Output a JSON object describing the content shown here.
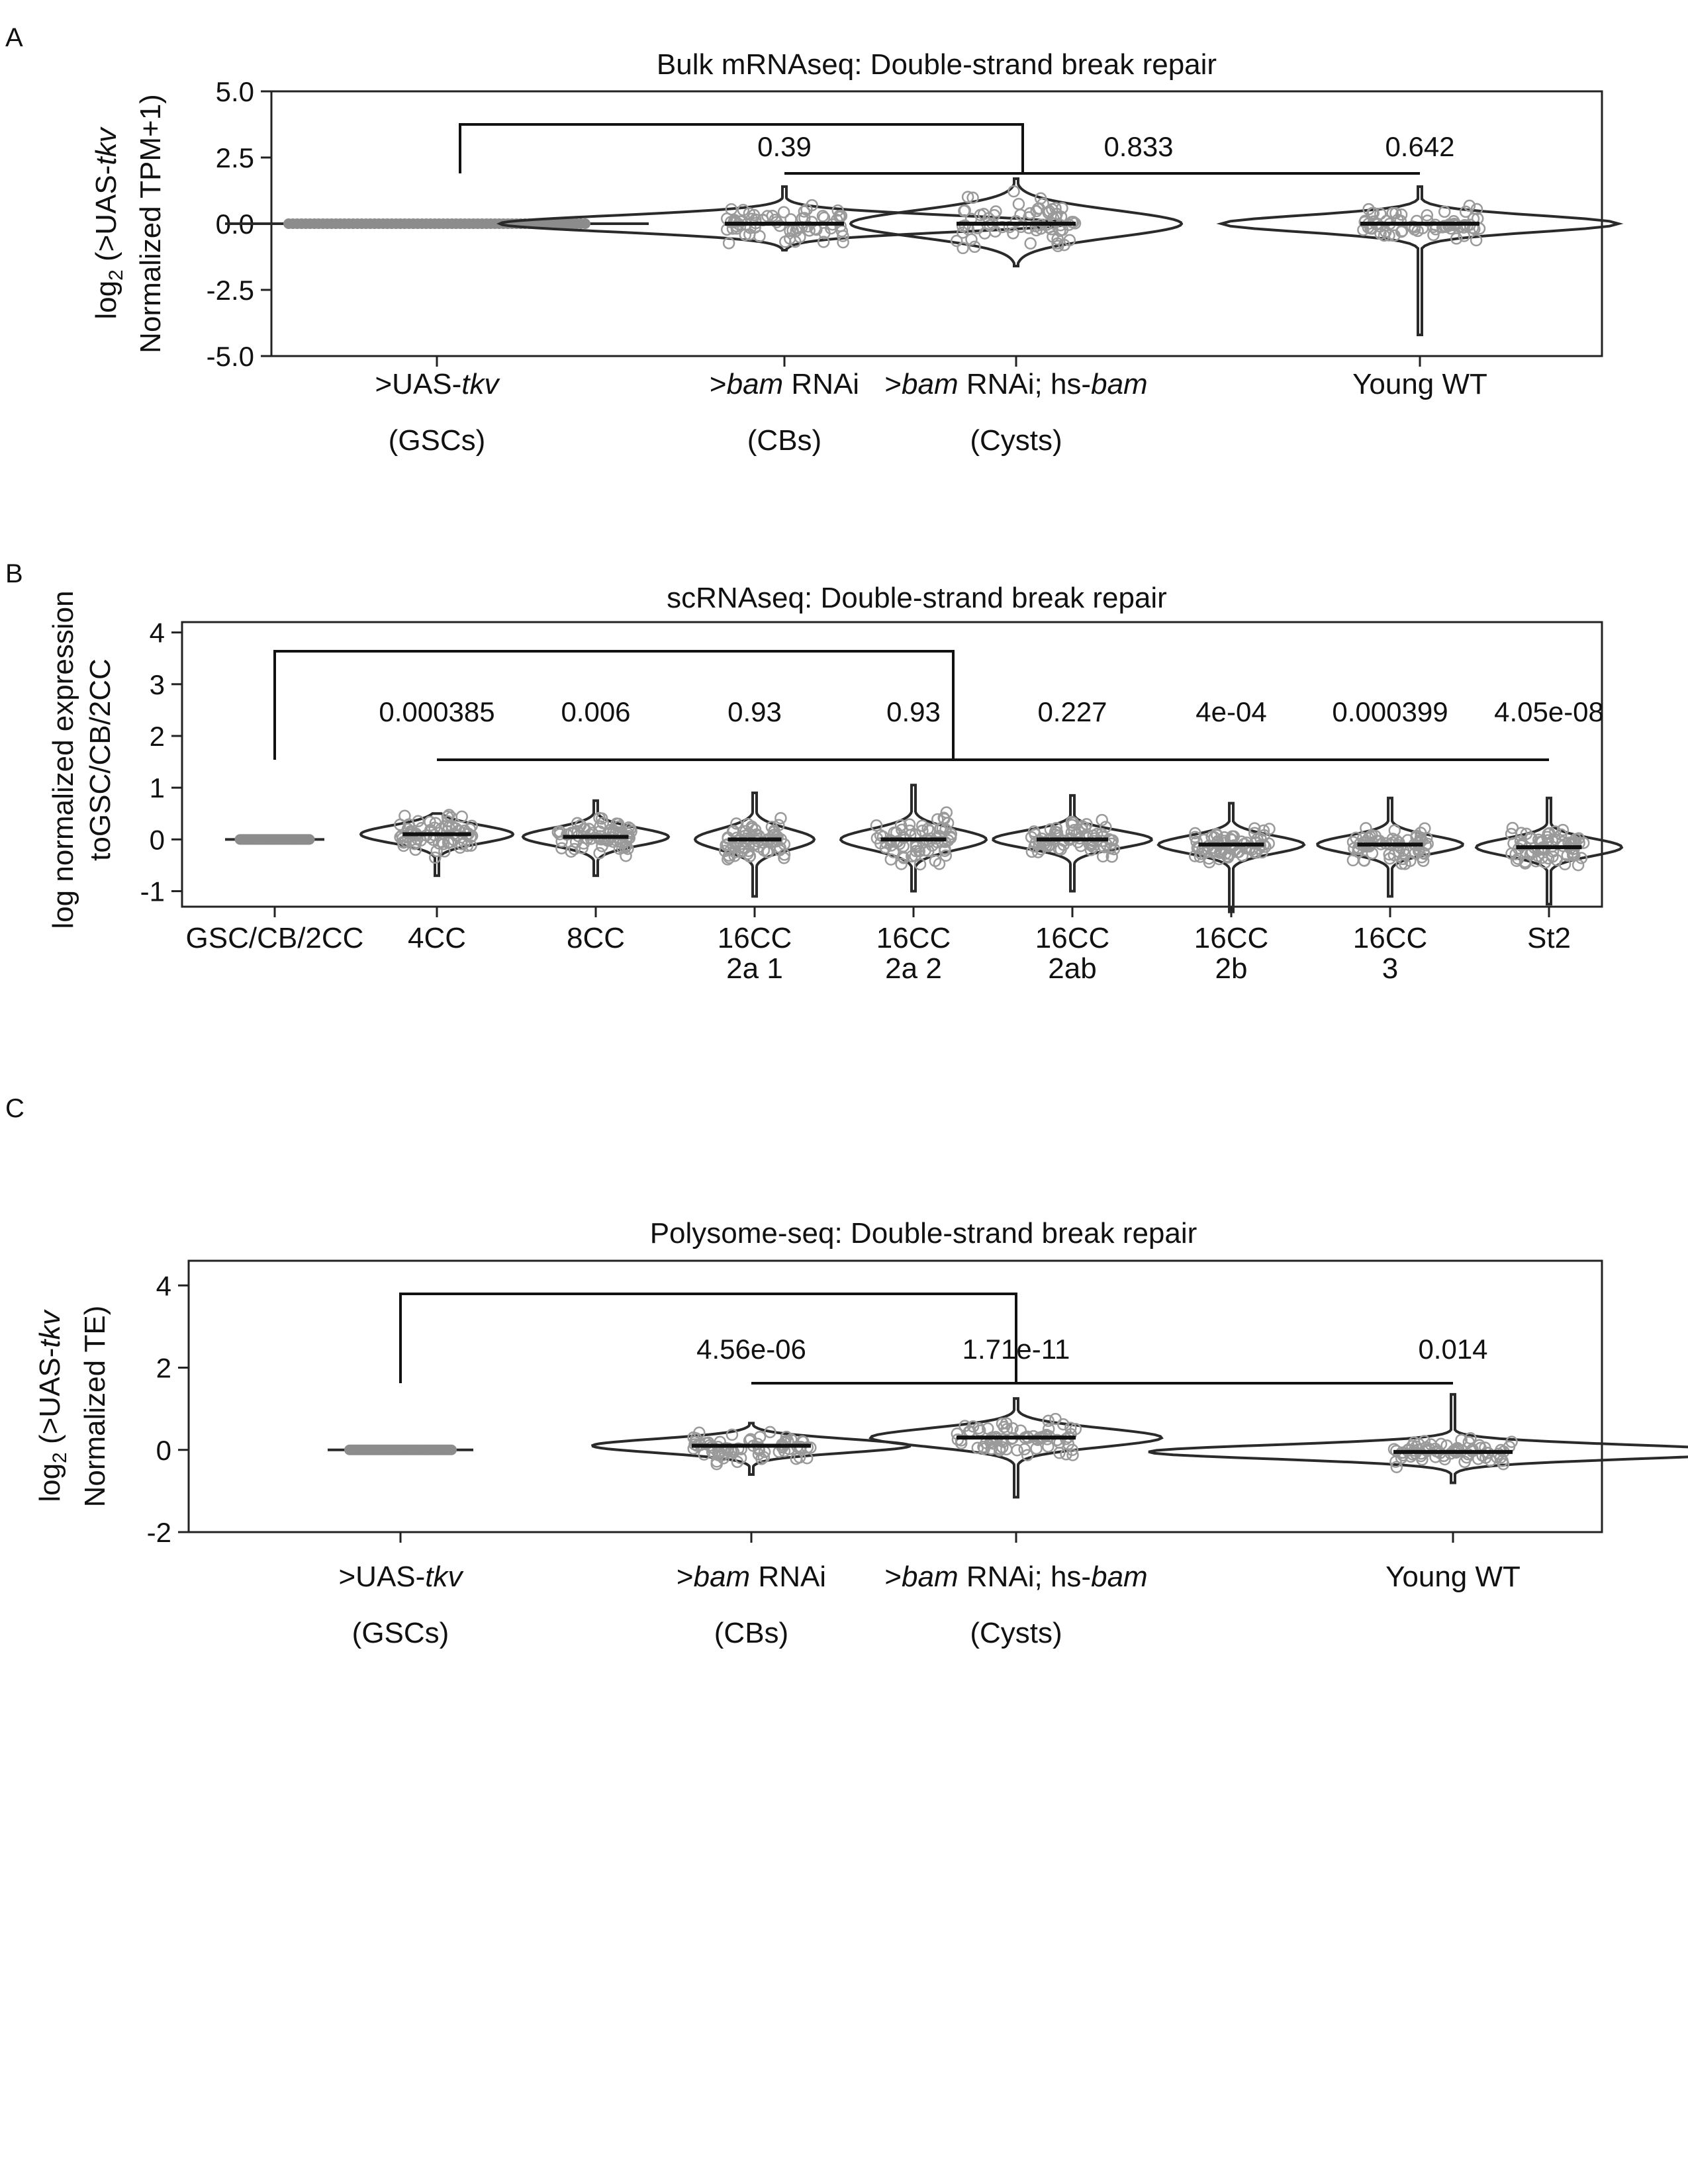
{
  "colors": {
    "frame": "#222222",
    "violin_outline": "#2a2a2a",
    "points": "#9a9a9a",
    "text": "#111111"
  },
  "chart_data": [
    {
      "panel": "A",
      "type": "violin",
      "title": "Bulk mRNAseq: Double-strand break repair",
      "ylabel_line1_pre": "log",
      "ylabel_line1_sub": "2",
      "ylabel_line1_mid": " (>UAS-",
      "ylabel_line1_it": "tkv",
      "ylabel_line2": "Normalized TPM+1)",
      "ylim": [
        -5.0,
        5.0
      ],
      "yticks": [
        5.0,
        2.5,
        0.0,
        -2.5,
        -5.0
      ],
      "ytick_labels": [
        "5.0",
        "2.5",
        "0.0",
        "-2.5",
        "-5.0"
      ],
      "categories": [
        {
          "line1": [
            [
              ">UAS-",
              false
            ],
            [
              "tkv",
              true
            ]
          ],
          "line2": "(GSCs)"
        },
        {
          "line1": [
            [
              ">",
              false
            ],
            [
              "bam",
              true
            ],
            [
              " RNAi",
              false
            ]
          ],
          "line2": "(CBs)"
        },
        {
          "line1": [
            [
              ">",
              false
            ],
            [
              "bam",
              true
            ],
            [
              " RNAi; hs-",
              false
            ],
            [
              "bam",
              true
            ]
          ],
          "line2": "(Cysts)"
        },
        {
          "line1": [
            [
              "Young WT",
              false
            ]
          ],
          "line2": ""
        }
      ],
      "groups": [
        {
          "median": 0.0,
          "min": 0.0,
          "max": 0.0,
          "spread": 0.0
        },
        {
          "median": 0.0,
          "min": -1.0,
          "max": 1.4,
          "spread": 0.55
        },
        {
          "median": 0.0,
          "min": -1.6,
          "max": 1.7,
          "spread": 0.9
        },
        {
          "median": 0.0,
          "min": -4.2,
          "max": 1.4,
          "spread": 0.55
        }
      ],
      "pvalues": [
        "0.39",
        "0.833",
        "0.642"
      ]
    },
    {
      "panel": "B",
      "type": "violin",
      "title": "scRNAseq: Double-strand break repair",
      "ylabel_line1": "log normalized expression",
      "ylabel_line2": "toGSC/CB/2CC",
      "ylim": [
        -1.3,
        4.2
      ],
      "yticks": [
        4,
        3,
        2,
        1,
        0,
        -1
      ],
      "ytick_labels": [
        "4",
        "3",
        "2",
        "1",
        "0",
        "-1"
      ],
      "categories": [
        {
          "line1": "GSC/CB/2CC",
          "line2": ""
        },
        {
          "line1": "4CC",
          "line2": ""
        },
        {
          "line1": "8CC",
          "line2": ""
        },
        {
          "line1": "16CC",
          "line2": "2a 1"
        },
        {
          "line1": "16CC",
          "line2": "2a 2"
        },
        {
          "line1": "16CC",
          "line2": "2ab"
        },
        {
          "line1": "16CC",
          "line2": "2b"
        },
        {
          "line1": "16CC",
          "line2": "3"
        },
        {
          "line1": "St2",
          "line2": ""
        }
      ],
      "groups": [
        {
          "median": 0.0,
          "min": 0.0,
          "max": 0.0,
          "spread": 0.0
        },
        {
          "median": 0.1,
          "min": -0.7,
          "max": 0.5,
          "spread": 0.3
        },
        {
          "median": 0.05,
          "min": -0.7,
          "max": 0.75,
          "spread": 0.3
        },
        {
          "median": 0.0,
          "min": -1.1,
          "max": 0.9,
          "spread": 0.35
        },
        {
          "median": 0.0,
          "min": -1.0,
          "max": 1.05,
          "spread": 0.35
        },
        {
          "median": 0.0,
          "min": -1.0,
          "max": 0.85,
          "spread": 0.3
        },
        {
          "median": -0.1,
          "min": -1.4,
          "max": 0.7,
          "spread": 0.3
        },
        {
          "median": -0.1,
          "min": -1.1,
          "max": 0.8,
          "spread": 0.3
        },
        {
          "median": -0.15,
          "min": -1.25,
          "max": 0.8,
          "spread": 0.3
        }
      ],
      "pvalues": [
        "0.000385",
        "0.006",
        "0.93",
        "0.93",
        "0.227",
        "4e-04",
        "0.000399",
        "4.05e-08"
      ]
    },
    {
      "panel": "C",
      "type": "violin",
      "title": "Polysome-seq: Double-strand break repair",
      "ylabel_line1_pre": "log",
      "ylabel_line1_sub": "2",
      "ylabel_line1_mid": " (>UAS-",
      "ylabel_line1_it": "tkv",
      "ylabel_line2": "Normalized TE)",
      "ylim": [
        -2.0,
        4.6
      ],
      "yticks": [
        4,
        2,
        0,
        -2
      ],
      "ytick_labels": [
        "4",
        "2",
        "0",
        "-2"
      ],
      "categories": [
        {
          "line1": [
            [
              ">UAS-",
              false
            ],
            [
              "tkv",
              true
            ]
          ],
          "line2": "(GSCs)"
        },
        {
          "line1": [
            [
              ">",
              false
            ],
            [
              "bam",
              true
            ],
            [
              " RNAi",
              false
            ]
          ],
          "line2": "(CBs)"
        },
        {
          "line1": [
            [
              ">",
              false
            ],
            [
              "bam",
              true
            ],
            [
              " RNAi; hs-",
              false
            ],
            [
              "bam",
              true
            ]
          ],
          "line2": "(Cysts)"
        },
        {
          "line1": [
            [
              "Young WT",
              false
            ]
          ],
          "line2": ""
        }
      ],
      "groups": [
        {
          "median": 0.0,
          "min": 0.0,
          "max": 0.0,
          "spread": 0.0
        },
        {
          "median": 0.1,
          "min": -0.6,
          "max": 0.65,
          "spread": 0.3
        },
        {
          "median": 0.3,
          "min": -1.15,
          "max": 1.25,
          "spread": 0.4
        },
        {
          "median": -0.05,
          "min": -0.8,
          "max": 1.35,
          "spread": 0.3
        }
      ],
      "pvalues": [
        "4.56e-06",
        "1.71e-11",
        "0.014"
      ]
    }
  ],
  "panel_letters": [
    "A",
    "B",
    "C"
  ]
}
